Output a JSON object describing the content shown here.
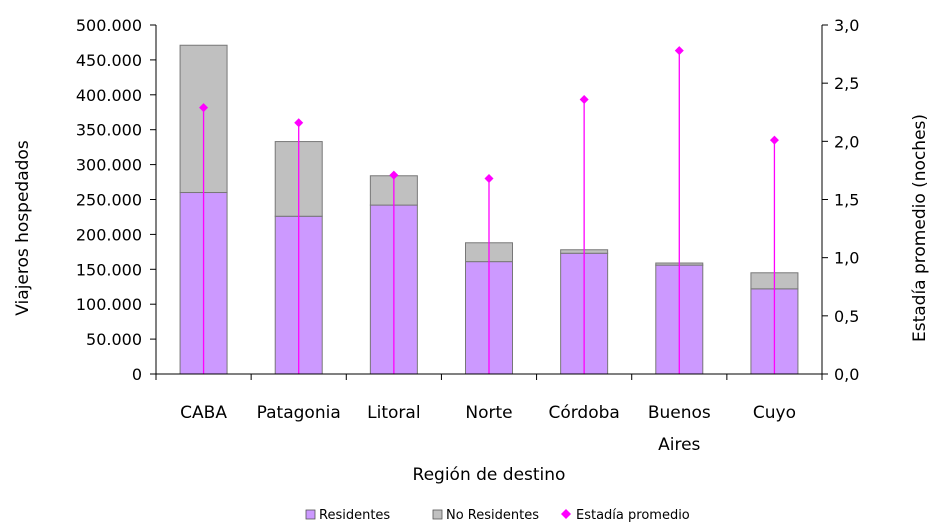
{
  "chart_data": {
    "type": "bar",
    "stacked": true,
    "categories": [
      "CABA",
      "Patagonia",
      "Litoral",
      "Norte",
      "Córdoba",
      "Buenos Aires",
      "Cuyo"
    ],
    "category_lines": [
      [
        "CABA"
      ],
      [
        "Patagonia"
      ],
      [
        "Litoral"
      ],
      [
        "Norte"
      ],
      [
        "Córdoba"
      ],
      [
        "Buenos",
        "Aires"
      ],
      [
        "Cuyo"
      ]
    ],
    "series": [
      {
        "name": "Residentes",
        "axis": "left",
        "color": "#cc99ff",
        "values": [
          260000,
          226000,
          242000,
          161000,
          173000,
          156000,
          122000
        ]
      },
      {
        "name": "No Residentes",
        "axis": "left",
        "color": "#c0c0c0",
        "values": [
          211000,
          107000,
          42000,
          27000,
          5000,
          3000,
          23000
        ]
      },
      {
        "name": "Estadía promedio",
        "axis": "right",
        "type": "scatter",
        "marker": "diamond",
        "color": "#ff00ff",
        "values": [
          2.29,
          2.16,
          1.71,
          1.68,
          2.36,
          2.78,
          2.01
        ]
      }
    ],
    "xlabel": "Región de destino",
    "ylabel": "Viajeros hospedados",
    "y2label": "Estadía promedio (noches)",
    "ylim": [
      0,
      500000
    ],
    "y2lim": [
      0,
      3.0
    ],
    "yticks": [
      "0",
      "50.000",
      "100.000",
      "150.000",
      "200.000",
      "250.000",
      "300.000",
      "350.000",
      "400.000",
      "450.000",
      "500.000"
    ],
    "y2ticks": [
      "0,0",
      "0,5",
      "1,0",
      "1,5",
      "2,0",
      "2,5",
      "3,0"
    ],
    "grid": false,
    "legend_position": "bottom"
  }
}
